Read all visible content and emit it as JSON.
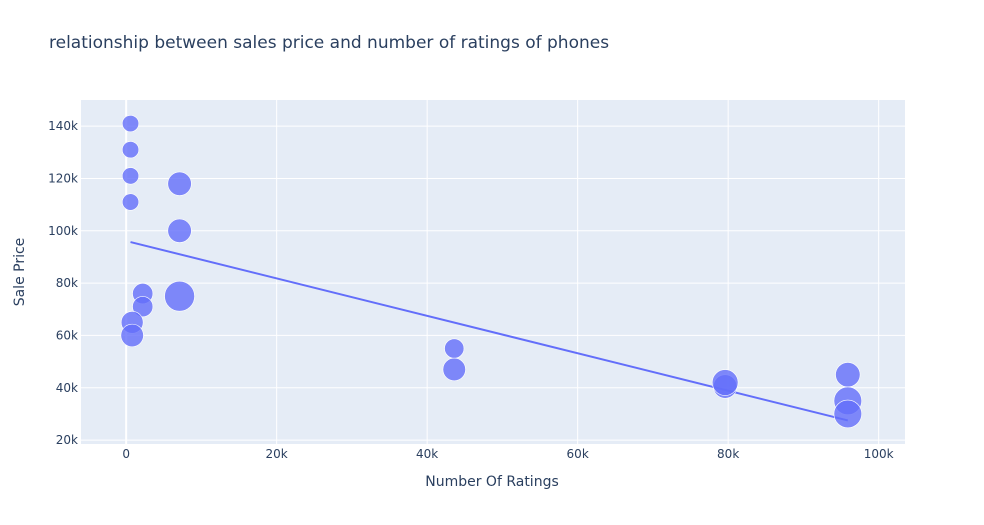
{
  "chart_data": {
    "type": "scatter",
    "title": "relationship between sales price and number of ratings of phones",
    "xlabel": "Number Of Ratings",
    "ylabel": "Sale Price",
    "xlim": [
      -6000,
      103500
    ],
    "ylim": [
      18500,
      150000
    ],
    "xticks": [
      0,
      20000,
      40000,
      60000,
      80000,
      100000
    ],
    "xtick_labels": [
      "0",
      "20k",
      "40k",
      "60k",
      "80k",
      "100k"
    ],
    "yticks": [
      20000,
      40000,
      60000,
      80000,
      100000,
      120000,
      140000
    ],
    "ytick_labels": [
      "20k",
      "40k",
      "60k",
      "80k",
      "100k",
      "120k",
      "140k"
    ],
    "grid": true,
    "colors": {
      "marker": "#636efa",
      "line": "#636efa",
      "plot_bg": "#e5ecf6",
      "grid": "#ffffff"
    },
    "series": [
      {
        "mode": "markers",
        "points": [
          {
            "x": 580,
            "y": 141000,
            "size": 0.33
          },
          {
            "x": 580,
            "y": 131000,
            "size": 0.33
          },
          {
            "x": 580,
            "y": 121000,
            "size": 0.33
          },
          {
            "x": 580,
            "y": 111000,
            "size": 0.33
          },
          {
            "x": 7100,
            "y": 118000,
            "size": 0.55
          },
          {
            "x": 7100,
            "y": 100000,
            "size": 0.55
          },
          {
            "x": 7100,
            "y": 75000,
            "size": 0.75
          },
          {
            "x": 2200,
            "y": 76000,
            "size": 0.45
          },
          {
            "x": 2200,
            "y": 71000,
            "size": 0.45
          },
          {
            "x": 800,
            "y": 65000,
            "size": 0.5
          },
          {
            "x": 800,
            "y": 60000,
            "size": 0.52
          },
          {
            "x": 43600,
            "y": 55000,
            "size": 0.42
          },
          {
            "x": 43600,
            "y": 47000,
            "size": 0.52
          },
          {
            "x": 79600,
            "y": 40500,
            "size": 0.55
          },
          {
            "x": 79600,
            "y": 42000,
            "size": 0.62
          },
          {
            "x": 95900,
            "y": 45000,
            "size": 0.58
          },
          {
            "x": 95900,
            "y": 35000,
            "size": 0.68
          },
          {
            "x": 95900,
            "y": 30000,
            "size": 0.68
          }
        ]
      },
      {
        "mode": "lines",
        "x": [
          580,
          95900
        ],
        "y": [
          95700,
          27500
        ]
      }
    ]
  }
}
